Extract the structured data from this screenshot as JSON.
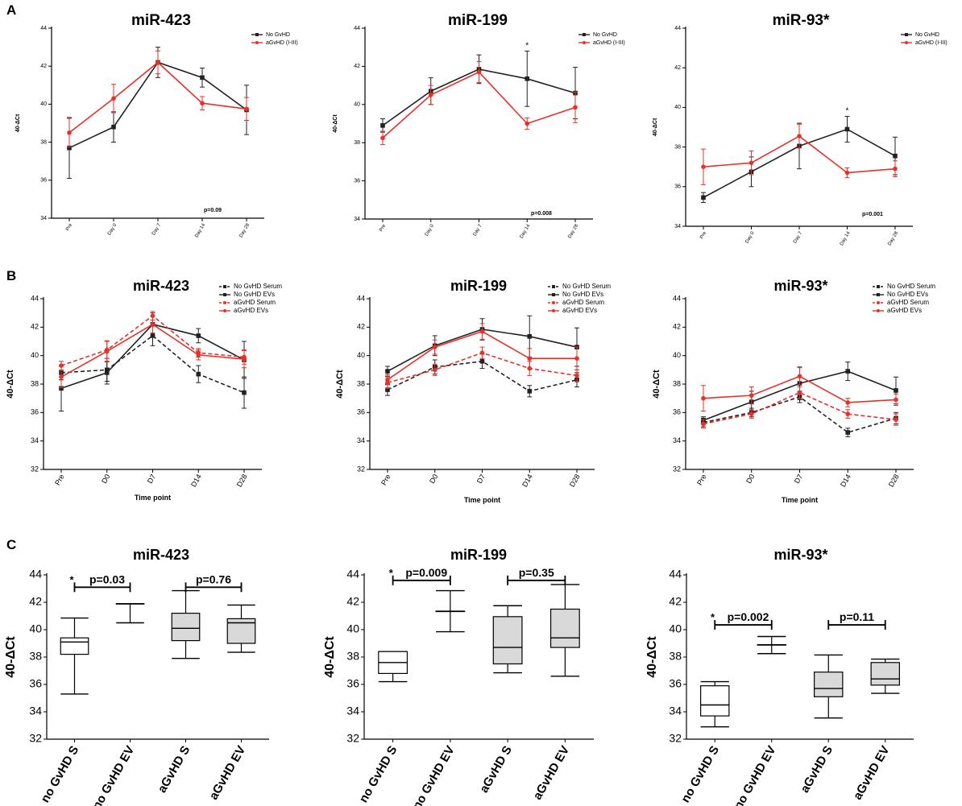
{
  "panel_labels": [
    "A",
    "B",
    "C"
  ],
  "colors": {
    "black": "#222222",
    "red": "#e8302a",
    "box_fill": "#d9d9d9"
  },
  "chart_data": [
    {
      "panel": "A",
      "type": "line",
      "title": "miR-423",
      "ylabel": "40-ΔCt",
      "xlabel": "",
      "categories": [
        "Pre",
        "Day 0",
        "Day 7",
        "Day 14",
        "Day 28"
      ],
      "ylim": [
        34,
        44
      ],
      "yticks": [
        34,
        36,
        38,
        40,
        42,
        44
      ],
      "legend": [
        "No GvHD",
        "aGvHD (I-III)"
      ],
      "annotation": "p=0.09",
      "star_category": null,
      "series": [
        {
          "name": "No GvHD",
          "color": "#222222",
          "style": "solid",
          "marker": "square",
          "values": [
            37.7,
            38.8,
            42.2,
            41.4,
            39.7
          ],
          "err": [
            1.6,
            0.8,
            0.8,
            0.5,
            1.3
          ]
        },
        {
          "name": "aGvHD (I-III)",
          "color": "#e8302a",
          "style": "solid",
          "marker": "circle",
          "values": [
            38.5,
            40.3,
            42.2,
            40.05,
            39.75
          ],
          "err": [
            0.75,
            0.75,
            0.6,
            0.35,
            0.6
          ]
        }
      ]
    },
    {
      "panel": "A",
      "type": "line",
      "title": "miR-199",
      "ylabel": "40-ΔCt",
      "xlabel": "",
      "categories": [
        "Pre",
        "Day 0",
        "Day 7",
        "Day 14",
        "Day 28"
      ],
      "ylim": [
        34,
        44
      ],
      "yticks": [
        34,
        36,
        38,
        40,
        42,
        44
      ],
      "legend": [
        "No GvHD",
        "aGvHD (I-III)"
      ],
      "annotation": "p=0.008",
      "star_category": 3,
      "series": [
        {
          "name": "No GvHD",
          "color": "#222222",
          "style": "solid",
          "marker": "square",
          "values": [
            38.9,
            40.7,
            41.85,
            41.35,
            40.6
          ],
          "err": [
            0.35,
            0.7,
            0.75,
            1.45,
            1.35
          ]
        },
        {
          "name": "aGvHD (I-III)",
          "color": "#e8302a",
          "style": "solid",
          "marker": "circle",
          "values": [
            38.25,
            40.5,
            41.7,
            39.0,
            39.85
          ],
          "err": [
            0.35,
            0.5,
            0.55,
            0.3,
            0.8
          ]
        }
      ]
    },
    {
      "panel": "A",
      "type": "line",
      "title": "miR-93*",
      "ylabel": "40-ΔCt",
      "xlabel": "",
      "categories": [
        "Pre",
        "Day 0",
        "Day 7",
        "Day 14",
        "Day 28"
      ],
      "ylim": [
        34,
        44
      ],
      "yticks": [
        34,
        36,
        38,
        40,
        42,
        44
      ],
      "legend": [
        "No GvHD",
        "aGvHD (I-III)"
      ],
      "annotation": "p=0.001",
      "star_category": 3,
      "series": [
        {
          "name": "No GvHD",
          "color": "#222222",
          "style": "solid",
          "marker": "square",
          "values": [
            35.45,
            36.75,
            38.05,
            38.9,
            37.55
          ],
          "err": [
            0.25,
            0.75,
            1.15,
            0.65,
            0.95
          ]
        },
        {
          "name": "aGvHD (I-III)",
          "color": "#e8302a",
          "style": "solid",
          "marker": "circle",
          "values": [
            37.0,
            37.2,
            38.55,
            36.7,
            36.9
          ],
          "err": [
            0.9,
            0.6,
            0.6,
            0.25,
            0.4
          ]
        }
      ]
    },
    {
      "panel": "B",
      "type": "line",
      "title": "miR-423",
      "ylabel": "40-ΔCt",
      "xlabel": "Time point",
      "categories": [
        "Pre",
        "D0",
        "D7",
        "D14",
        "D28"
      ],
      "ylim": [
        32,
        44
      ],
      "yticks": [
        32,
        34,
        36,
        38,
        40,
        42,
        44
      ],
      "legend": [
        "No GvHD Serum",
        "No GvHD EVs",
        "aGvHD Serum",
        "aGvHD EVs"
      ],
      "series": [
        {
          "name": "No GvHD Serum",
          "color": "#222222",
          "style": "dashed",
          "marker": "square",
          "values": [
            38.8,
            39.0,
            41.4,
            38.7,
            37.4
          ],
          "err": [
            0.5,
            0.8,
            0.7,
            0.6,
            1.1
          ]
        },
        {
          "name": "No GvHD EVs",
          "color": "#222222",
          "style": "solid",
          "marker": "square",
          "values": [
            37.7,
            38.8,
            42.2,
            41.4,
            39.7
          ],
          "err": [
            1.6,
            0.8,
            0.8,
            0.5,
            1.3
          ]
        },
        {
          "name": "aGvHD Serum",
          "color": "#e8302a",
          "style": "dashed",
          "marker": "circle",
          "values": [
            39.3,
            40.4,
            42.8,
            40.2,
            39.9
          ],
          "err": [
            0.3,
            0.6,
            0.3,
            0.3,
            0.5
          ]
        },
        {
          "name": "aGvHD EVs",
          "color": "#e8302a",
          "style": "solid",
          "marker": "circle",
          "values": [
            38.5,
            40.3,
            42.2,
            40.05,
            39.75
          ],
          "err": [
            0.75,
            0.75,
            0.6,
            0.35,
            0.6
          ]
        }
      ]
    },
    {
      "panel": "B",
      "type": "line",
      "title": "miR-199",
      "ylabel": "40-ΔCt",
      "xlabel": "Time point",
      "categories": [
        "Pre",
        "D0",
        "D7",
        "D14",
        "D28"
      ],
      "ylim": [
        32,
        44
      ],
      "yticks": [
        32,
        34,
        36,
        38,
        40,
        42,
        44
      ],
      "legend": [
        "No GvHD Serum",
        "No GvHD EVs",
        "aGvHD Serum",
        "aGvHD EVs"
      ],
      "series": [
        {
          "name": "No GvHD Serum",
          "color": "#222222",
          "style": "dashed",
          "marker": "square",
          "values": [
            37.6,
            39.2,
            39.6,
            37.5,
            38.3
          ],
          "err": [
            0.4,
            0.5,
            0.5,
            0.4,
            0.5
          ]
        },
        {
          "name": "No GvHD EVs",
          "color": "#222222",
          "style": "solid",
          "marker": "square",
          "values": [
            38.9,
            40.7,
            41.85,
            41.35,
            40.6
          ],
          "err": [
            0.35,
            0.7,
            0.75,
            1.45,
            1.35
          ]
        },
        {
          "name": "aGvHD Serum",
          "color": "#e8302a",
          "style": "dashed",
          "marker": "circle",
          "values": [
            38.1,
            39.0,
            40.2,
            39.1,
            38.6
          ],
          "err": [
            0.4,
            0.4,
            0.4,
            0.5,
            0.4
          ]
        },
        {
          "name": "aGvHD EVs",
          "color": "#e8302a",
          "style": "solid",
          "marker": "circle",
          "values": [
            38.3,
            40.6,
            41.7,
            39.8,
            39.8
          ],
          "err": [
            0.35,
            0.5,
            0.55,
            0.7,
            0.8
          ]
        }
      ]
    },
    {
      "panel": "B",
      "type": "line",
      "title": "miR-93*",
      "ylabel": "40-ΔCt",
      "xlabel": "Time point",
      "categories": [
        "Pre",
        "D0",
        "D7",
        "D14",
        "D28"
      ],
      "ylim": [
        32,
        44
      ],
      "yticks": [
        32,
        34,
        36,
        38,
        40,
        42,
        44
      ],
      "legend": [
        "No GvHD Serum",
        "No GvHD EVs",
        "aGvHD Serum",
        "aGvHD EVs"
      ],
      "series": [
        {
          "name": "No GvHD Serum",
          "color": "#222222",
          "style": "dashed",
          "marker": "square",
          "values": [
            35.3,
            36.0,
            37.1,
            34.6,
            35.6
          ],
          "err": [
            0.3,
            0.3,
            0.4,
            0.3,
            0.4
          ]
        },
        {
          "name": "No GvHD EVs",
          "color": "#222222",
          "style": "solid",
          "marker": "square",
          "values": [
            35.45,
            36.75,
            38.05,
            38.9,
            37.55
          ],
          "err": [
            0.25,
            0.75,
            1.15,
            0.65,
            0.95
          ]
        },
        {
          "name": "aGvHD Serum",
          "color": "#e8302a",
          "style": "dashed",
          "marker": "circle",
          "values": [
            35.2,
            35.9,
            37.4,
            35.9,
            35.5
          ],
          "err": [
            0.3,
            0.3,
            0.4,
            0.3,
            0.4
          ]
        },
        {
          "name": "aGvHD EVs",
          "color": "#e8302a",
          "style": "solid",
          "marker": "circle",
          "values": [
            37.0,
            37.2,
            38.55,
            36.7,
            36.9
          ],
          "err": [
            0.9,
            0.6,
            0.6,
            0.3,
            0.4
          ]
        }
      ]
    },
    {
      "panel": "C",
      "type": "box",
      "title": "miR-423",
      "ylabel": "40-ΔCt",
      "categories": [
        "no GvHD S",
        "no GvHD EV",
        "aGvHD S",
        "aGvHD EV"
      ],
      "ylim": [
        32,
        44
      ],
      "yticks": [
        32,
        34,
        36,
        38,
        40,
        42,
        44
      ],
      "boxes": [
        {
          "min": 35.3,
          "q1": 38.2,
          "median": 39.1,
          "q3": 39.4,
          "max": 40.85,
          "filled": false
        },
        {
          "min": 40.5,
          "q1": 41.9,
          "median": 41.9,
          "q3": 41.9,
          "max": 41.9,
          "filled": false
        },
        {
          "min": 37.9,
          "q1": 39.2,
          "median": 40.1,
          "q3": 41.2,
          "max": 42.85,
          "filled": true
        },
        {
          "min": 38.35,
          "q1": 39.0,
          "median": 40.5,
          "q3": 40.8,
          "max": 41.8,
          "filled": true
        }
      ],
      "brackets": [
        {
          "from": 0,
          "to": 1,
          "label": "p=0.03",
          "star": true,
          "y": 43.1
        },
        {
          "from": 2,
          "to": 3,
          "label": "p=0.76",
          "star": false,
          "y": 43.1
        }
      ]
    },
    {
      "panel": "C",
      "type": "box",
      "title": "miR-199",
      "ylabel": "40-ΔCt",
      "categories": [
        "no GvHD S",
        "no GvHD EV",
        "aGvHD S",
        "aGvHD EV"
      ],
      "ylim": [
        32,
        44
      ],
      "yticks": [
        32,
        34,
        36,
        38,
        40,
        42,
        44
      ],
      "boxes": [
        {
          "min": 36.2,
          "q1": 36.8,
          "median": 37.6,
          "q3": 38.4,
          "max": 38.4,
          "filled": false
        },
        {
          "min": 39.85,
          "q1": 41.35,
          "median": 41.35,
          "q3": 41.35,
          "max": 42.85,
          "filled": false
        },
        {
          "min": 36.85,
          "q1": 37.5,
          "median": 38.7,
          "q3": 40.95,
          "max": 41.75,
          "filled": true
        },
        {
          "min": 36.6,
          "q1": 38.7,
          "median": 39.4,
          "q3": 41.5,
          "max": 43.3,
          "filled": true
        }
      ],
      "brackets": [
        {
          "from": 0,
          "to": 1,
          "label": "p=0.009",
          "star": true,
          "y": 43.6
        },
        {
          "from": 2,
          "to": 3,
          "label": "p=0.35",
          "star": false,
          "y": 43.6
        }
      ]
    },
    {
      "panel": "C",
      "type": "box",
      "title": "miR-93*",
      "ylabel": "40-ΔCt",
      "categories": [
        "no GvHD S",
        "no GvHD EV",
        "aGvHD S",
        "aGvHD EV"
      ],
      "ylim": [
        32,
        44
      ],
      "yticks": [
        32,
        34,
        36,
        38,
        40,
        42,
        44
      ],
      "boxes": [
        {
          "min": 32.9,
          "q1": 33.7,
          "median": 34.5,
          "q3": 35.9,
          "max": 36.2,
          "filled": false
        },
        {
          "min": 38.25,
          "q1": 38.9,
          "median": 38.9,
          "q3": 38.9,
          "max": 39.5,
          "filled": false
        },
        {
          "min": 33.55,
          "q1": 35.1,
          "median": 35.7,
          "q3": 36.9,
          "max": 38.15,
          "filled": true
        },
        {
          "min": 35.35,
          "q1": 35.95,
          "median": 36.4,
          "q3": 37.6,
          "max": 37.85,
          "filled": true
        }
      ],
      "brackets": [
        {
          "from": 0,
          "to": 1,
          "label": "p=0.002",
          "star": true,
          "y": 40.35
        },
        {
          "from": 2,
          "to": 3,
          "label": "p=0.11",
          "star": false,
          "y": 40.35
        }
      ]
    }
  ]
}
